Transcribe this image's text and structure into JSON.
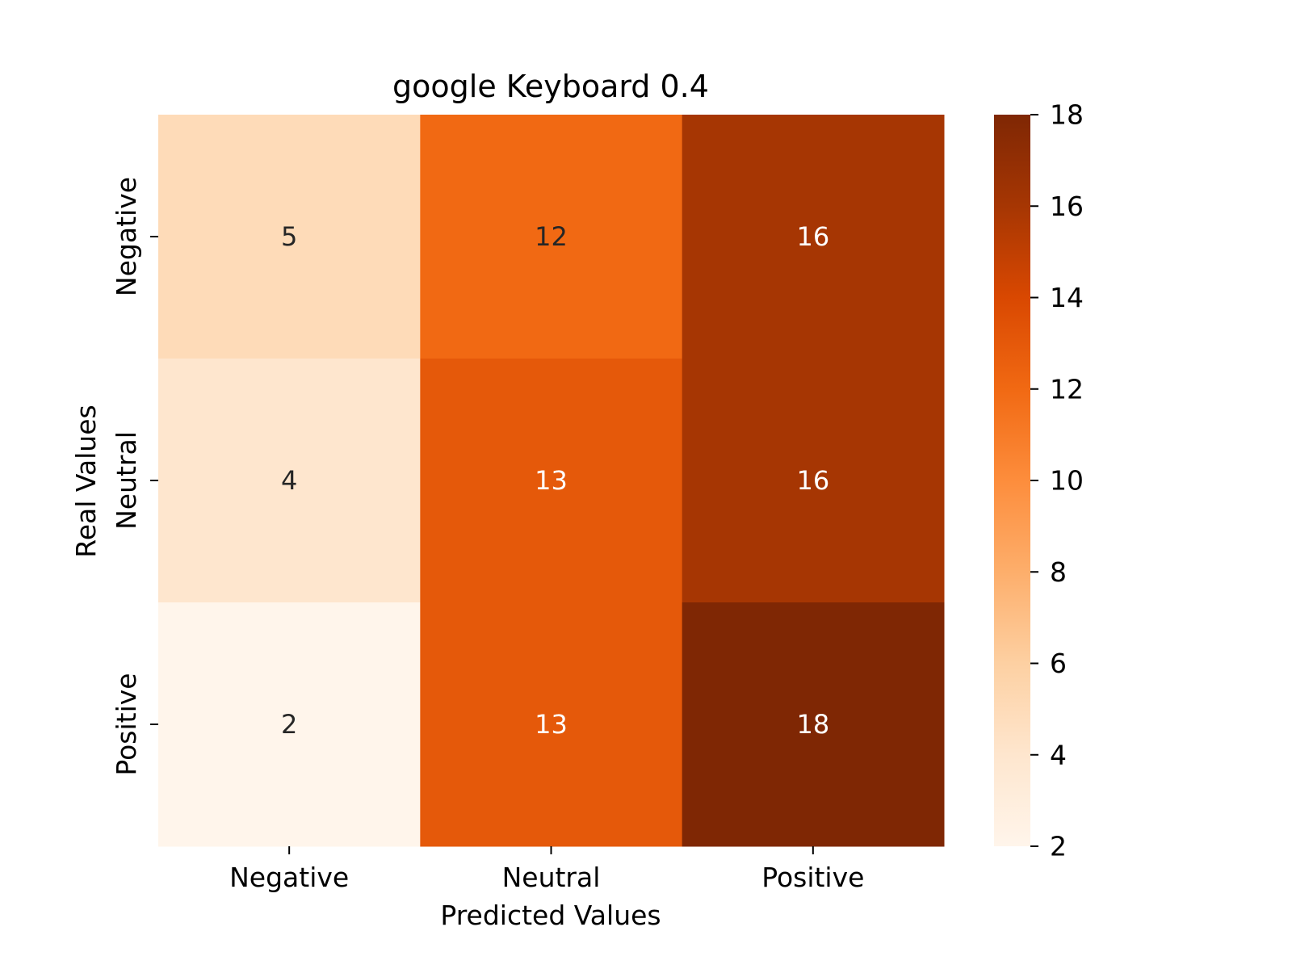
{
  "chart_data": {
    "type": "heatmap",
    "title": "google Keyboard 0.4",
    "xlabel": "Predicted Values",
    "ylabel": "Real Values",
    "x_categories": [
      "Negative",
      "Neutral",
      "Positive"
    ],
    "y_categories": [
      "Negative",
      "Neutral",
      "Positive"
    ],
    "values": [
      [
        5,
        12,
        16
      ],
      [
        4,
        13,
        16
      ],
      [
        2,
        13,
        18
      ]
    ],
    "colorbar": {
      "range": [
        2,
        18
      ],
      "ticks": [
        2,
        4,
        6,
        8,
        10,
        12,
        14,
        16,
        18
      ],
      "colormap": "Oranges"
    },
    "colors": {
      "low": "#fff5eb",
      "high": "#7f2704"
    }
  }
}
